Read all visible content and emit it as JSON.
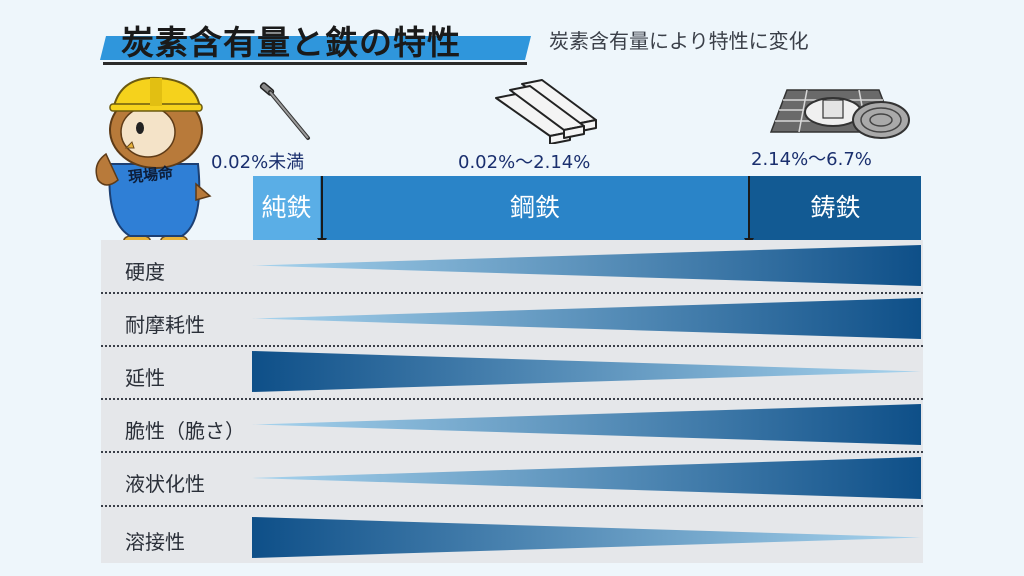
{
  "header": {
    "title": "炭素含有量と鉄の特性",
    "subtitle": "炭素含有量により特性に変化"
  },
  "mascot": {
    "shirt_text": "現場命",
    "icon": "owl-worker-mascot-icon"
  },
  "ranges": [
    {
      "label": "0.02%未満",
      "icon": "nail-icon"
    },
    {
      "label": "0.02%〜2.14%",
      "icon": "steel-bars-icon"
    },
    {
      "label": "2.14%〜6.7%",
      "icon": "manhole-cover-icon"
    }
  ],
  "categories": [
    {
      "label": "純鉄",
      "color": "#5aaee6"
    },
    {
      "label": "鋼鉄",
      "color": "#2a84c8"
    },
    {
      "label": "鋳鉄",
      "color": "#125a93"
    }
  ],
  "properties": [
    {
      "label": "硬度",
      "trend": "increasing"
    },
    {
      "label": "耐摩耗性",
      "trend": "increasing"
    },
    {
      "label": "延性",
      "trend": "decreasing"
    },
    {
      "label": "脆性（脆さ）",
      "trend": "increasing"
    },
    {
      "label": "液状化性",
      "trend": "increasing"
    },
    {
      "label": "溶接性",
      "trend": "decreasing"
    }
  ],
  "colors": {
    "wedge_dark": "#0e4f88",
    "wedge_light": "#a8d4ee",
    "title_accent": "#2f96dc"
  }
}
